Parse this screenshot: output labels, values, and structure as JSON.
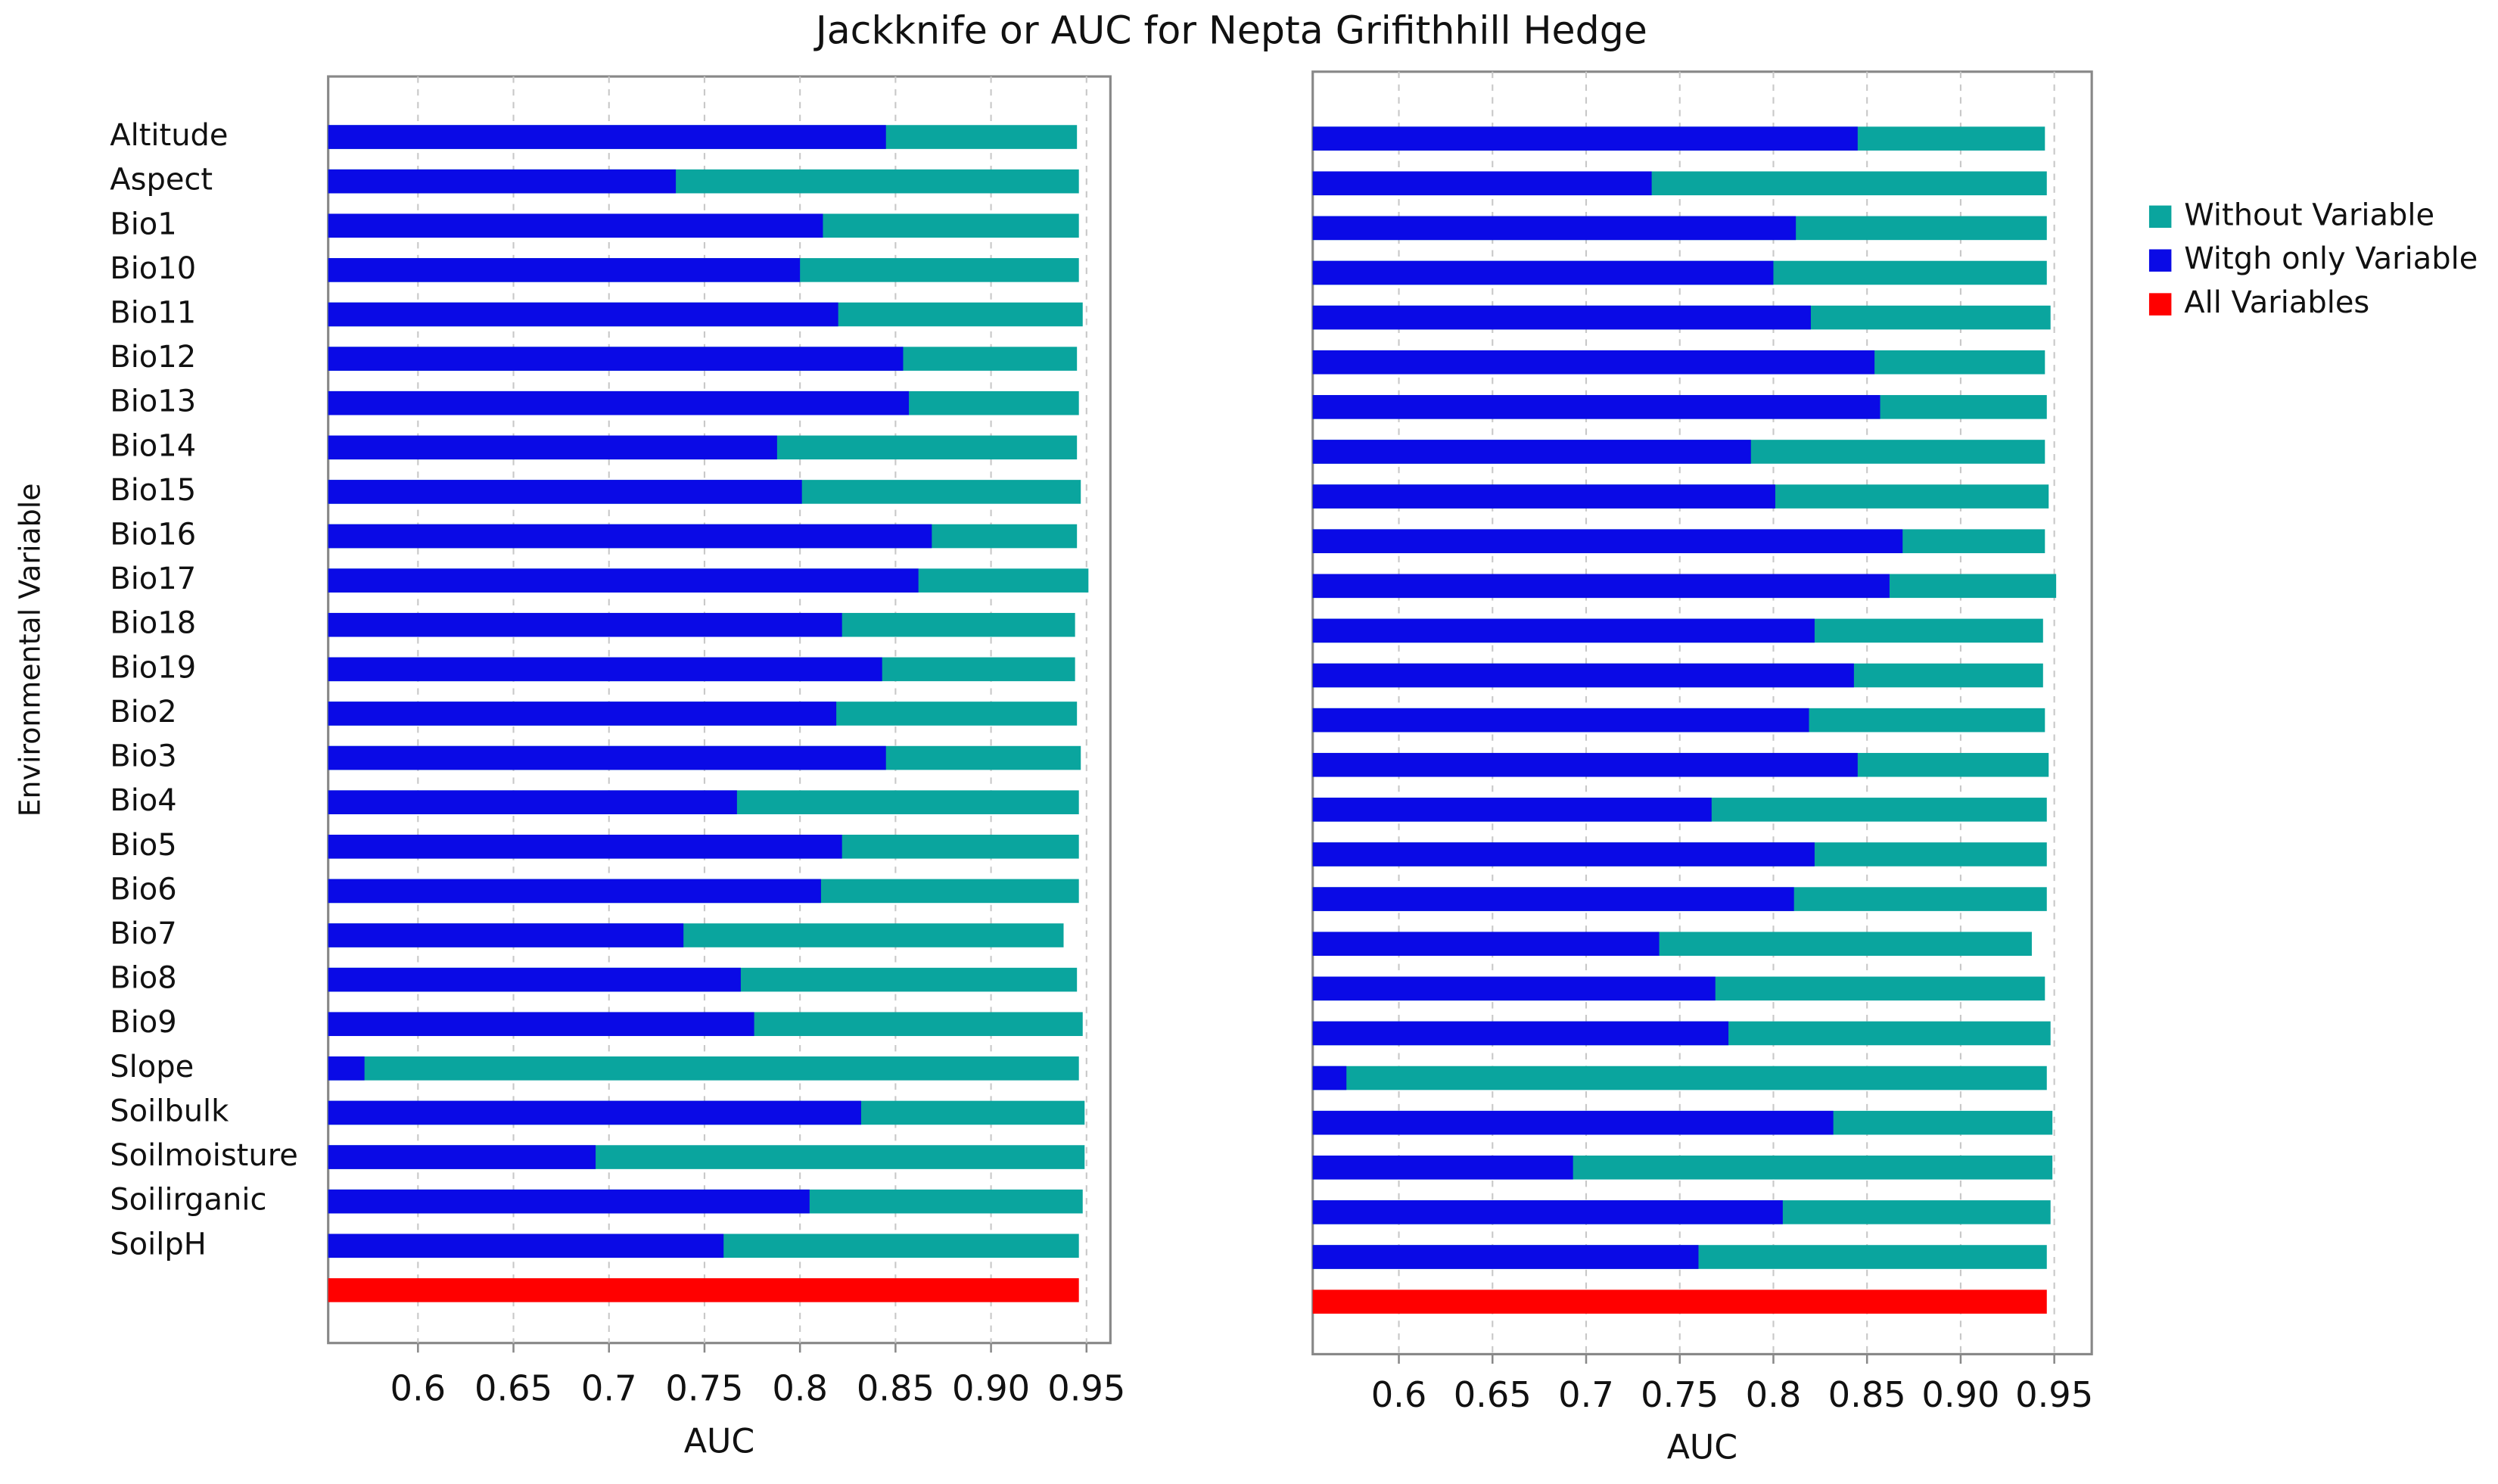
{
  "chart_data": [
    {
      "type": "bar",
      "orientation": "horizontal",
      "overlap": true,
      "title": "Jackknife or AUC for Nepta Grifithhill Hedge",
      "y_label": "Environmental Variable",
      "x_label": "AUC",
      "categories": [
        "Altitude",
        "Aspect",
        "Bio1",
        "Bio10",
        "Bio11",
        "Bio12",
        "Bio13",
        "Bio14",
        "Bio15",
        "Bio16",
        "Bio17",
        "Bio18",
        "Bio19",
        "Bio2",
        "Bio3",
        "Bio4",
        "Bio5",
        "Bio6",
        "Bio7",
        "Bio8",
        "Bio9",
        "Slope",
        "Soilbulk",
        "Soilmoisture",
        "Soilirganic",
        "SoilpH",
        null
      ],
      "series": [
        {
          "color": "#0aa59e",
          "values": [
            0.945,
            0.946,
            0.946,
            0.946,
            0.948,
            0.945,
            0.946,
            0.945,
            0.947,
            0.945,
            0.951,
            0.944,
            0.944,
            0.945,
            0.947,
            0.946,
            0.946,
            0.946,
            0.938,
            0.945,
            0.948,
            0.946,
            0.949,
            0.949,
            0.948,
            0.946,
            null
          ]
        },
        {
          "color": "#0a0ae6",
          "values": [
            0.845,
            0.735,
            0.812,
            0.8,
            0.82,
            0.854,
            0.857,
            0.788,
            0.801,
            0.869,
            0.862,
            0.822,
            0.843,
            0.819,
            0.845,
            0.767,
            0.822,
            0.811,
            0.739,
            0.769,
            0.776,
            0.572,
            0.832,
            0.693,
            0.805,
            0.76,
            null
          ]
        },
        {
          "color": "#ff0000",
          "values": [
            null,
            null,
            null,
            null,
            null,
            null,
            null,
            null,
            null,
            null,
            null,
            null,
            null,
            null,
            null,
            null,
            null,
            null,
            null,
            null,
            null,
            null,
            null,
            null,
            null,
            null,
            0.946
          ]
        }
      ],
      "xlim": [
        0.553,
        0.9625
      ],
      "xticks": [
        0.6,
        0.65,
        0.7,
        0.75,
        0.8,
        0.85,
        {
          "value": 0.9,
          "label": "0.90"
        },
        0.95
      ],
      "grid": true
    },
    {
      "type": "bar",
      "orientation": "horizontal",
      "overlap": true,
      "x_label": "AUC",
      "legend": "right",
      "series": [
        {
          "name": "Without Variable",
          "color": "#0aa59e",
          "values": [
            0.945,
            0.946,
            0.946,
            0.946,
            0.948,
            0.945,
            0.946,
            0.945,
            0.947,
            0.945,
            0.951,
            0.944,
            0.944,
            0.945,
            0.947,
            0.946,
            0.946,
            0.946,
            0.938,
            0.945,
            0.948,
            0.946,
            0.949,
            0.949,
            0.948,
            0.946,
            null
          ]
        },
        {
          "name": "Witgh only Variable",
          "color": "#0a0ae6",
          "values": [
            0.845,
            0.735,
            0.812,
            0.8,
            0.82,
            0.854,
            0.857,
            0.788,
            0.801,
            0.869,
            0.862,
            0.822,
            0.843,
            0.819,
            0.845,
            0.767,
            0.822,
            0.811,
            0.739,
            0.769,
            0.776,
            0.572,
            0.832,
            0.693,
            0.805,
            0.76,
            null
          ]
        },
        {
          "name": "All Variables",
          "color": "#ff0000",
          "values": [
            null,
            null,
            null,
            null,
            null,
            null,
            null,
            null,
            null,
            null,
            null,
            null,
            null,
            null,
            null,
            null,
            null,
            null,
            null,
            null,
            null,
            null,
            null,
            null,
            null,
            null,
            0.946
          ]
        }
      ],
      "xlim": [
        0.554,
        0.97
      ],
      "xticks": [
        0.6,
        0.65,
        0.7,
        0.75,
        0.8,
        0.85,
        {
          "value": 0.9,
          "label": "0.90"
        },
        0.95
      ],
      "grid": true
    }
  ]
}
